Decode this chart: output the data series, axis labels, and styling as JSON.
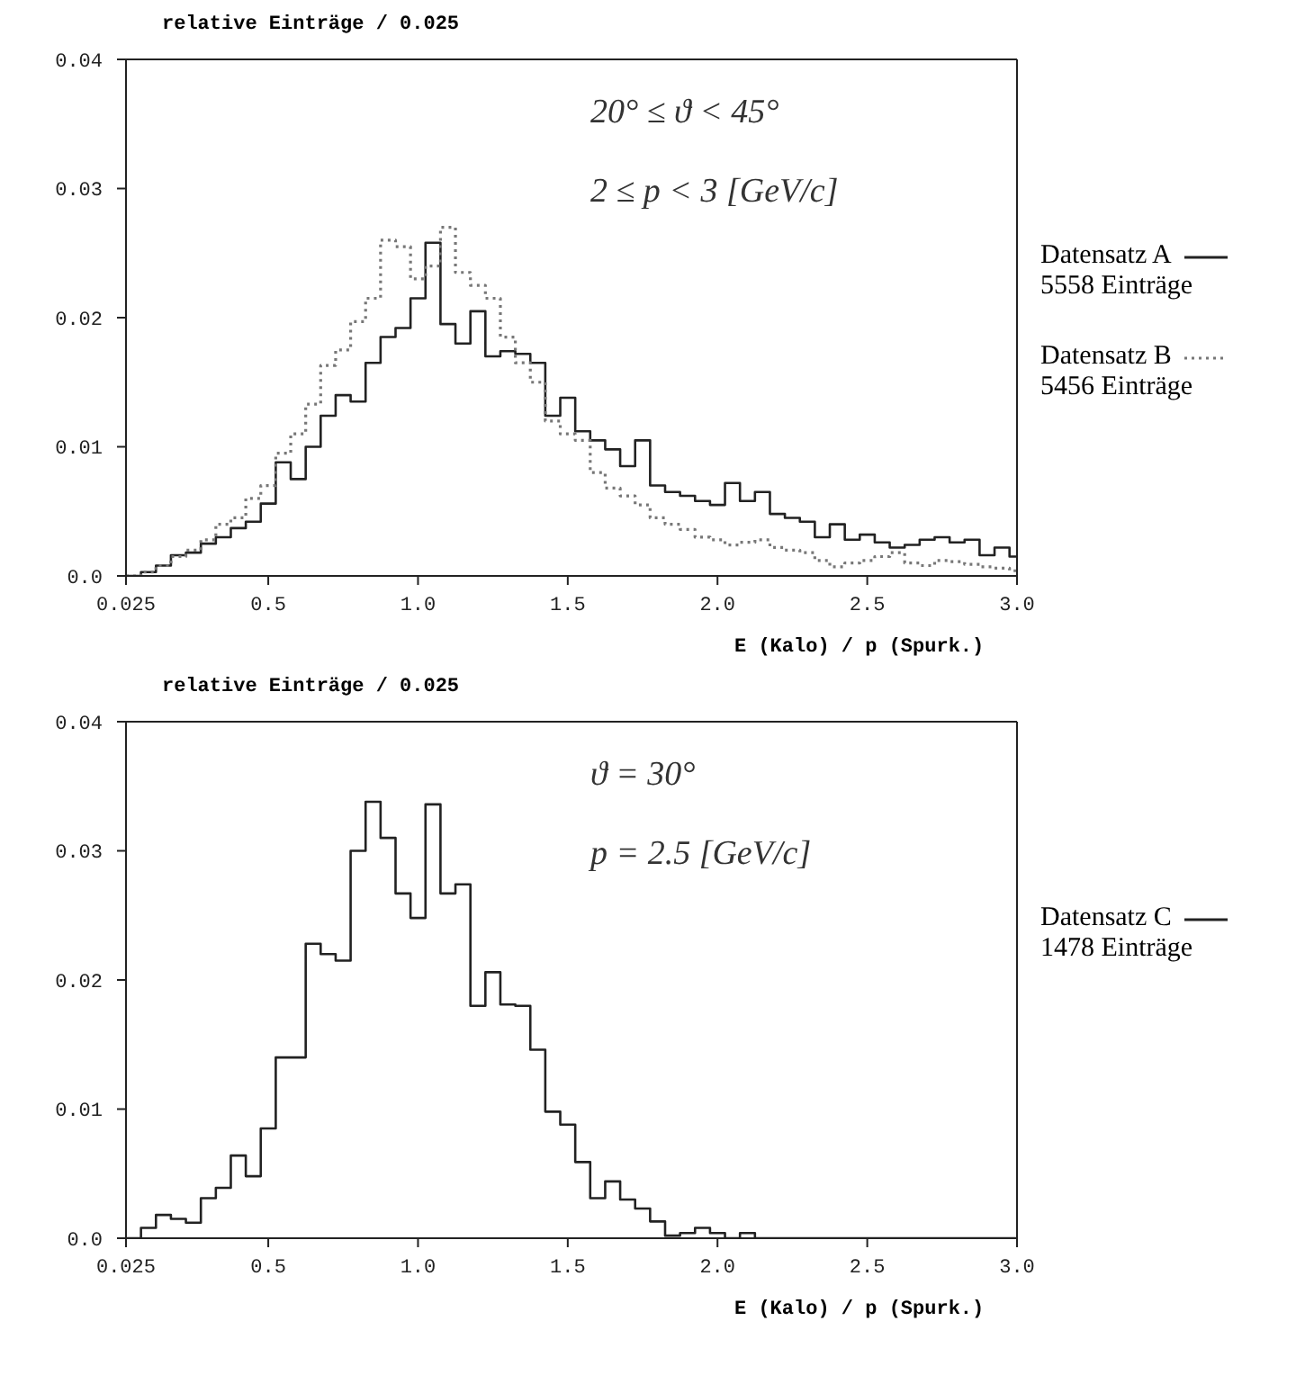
{
  "chart_data": [
    {
      "type": "histogram",
      "ylabel": "relative Einträge / 0.025",
      "xlabel": "E (Kalo) / p (Spurk.)",
      "bins": [
        0.025,
        0.075,
        0.125,
        0.175,
        0.225,
        0.275,
        0.325,
        0.375,
        0.425,
        0.475,
        0.525,
        0.575,
        0.625,
        0.675,
        0.725,
        0.775,
        0.825,
        0.875,
        0.925,
        0.975,
        1.025,
        1.075,
        1.125,
        1.175,
        1.225,
        1.275,
        1.325,
        1.375,
        1.425,
        1.475,
        1.525,
        1.575,
        1.625,
        1.675,
        1.725,
        1.775,
        1.825,
        1.875,
        1.925,
        1.975,
        2.025,
        2.075,
        2.125,
        2.175,
        2.225,
        2.275,
        2.325,
        2.375,
        2.425,
        2.475,
        2.525,
        2.575,
        2.625,
        2.675,
        2.725,
        2.775,
        2.825,
        2.875,
        2.925,
        2.975,
        3.0
      ],
      "series": [
        {
          "name": "Datensatz A",
          "color": "#222222",
          "line_style": "solid",
          "values": [
            0,
            0.0003,
            0.0008,
            0.0016,
            0.0018,
            0.0025,
            0.003,
            0.0037,
            0.0042,
            0.0056,
            0.0088,
            0.0075,
            0.01,
            0.0124,
            0.014,
            0.0135,
            0.0165,
            0.0185,
            0.0192,
            0.0215,
            0.0258,
            0.0195,
            0.018,
            0.0205,
            0.017,
            0.0174,
            0.0172,
            0.0165,
            0.0124,
            0.0138,
            0.0112,
            0.0105,
            0.0098,
            0.0085,
            0.0105,
            0.007,
            0.0065,
            0.0062,
            0.0058,
            0.0055,
            0.0072,
            0.0058,
            0.0065,
            0.0048,
            0.0045,
            0.0042,
            0.003,
            0.004,
            0.0028,
            0.0032,
            0.0026,
            0.0022,
            0.0024,
            0.0028,
            0.003,
            0.0026,
            0.0028,
            0.0016,
            0.0022,
            0.0015
          ]
        },
        {
          "name": "Datensatz B",
          "color": "#777777",
          "line_style": "dotted",
          "values": [
            0,
            0.0003,
            0.0008,
            0.0015,
            0.002,
            0.0028,
            0.004,
            0.0045,
            0.006,
            0.007,
            0.0095,
            0.011,
            0.0133,
            0.0163,
            0.0175,
            0.0197,
            0.0215,
            0.026,
            0.0255,
            0.023,
            0.024,
            0.027,
            0.0235,
            0.0225,
            0.0215,
            0.0185,
            0.0165,
            0.015,
            0.012,
            0.011,
            0.0105,
            0.008,
            0.0068,
            0.0062,
            0.0055,
            0.0045,
            0.004,
            0.0036,
            0.003,
            0.0028,
            0.0024,
            0.0026,
            0.0028,
            0.0022,
            0.002,
            0.0018,
            0.0012,
            0.0007,
            0.001,
            0.0012,
            0.0015,
            0.0018,
            0.001,
            0.0008,
            0.0012,
            0.0011,
            0.0009,
            0.0007,
            0.0006,
            0.0004
          ]
        }
      ],
      "xlim": [
        0.025,
        3.0
      ],
      "xticks": [
        {
          "value": 0.025,
          "label": "0.025"
        },
        0.5,
        {
          "value": 1,
          "label": "1.0"
        },
        1.5,
        {
          "value": 2,
          "label": "2.0"
        },
        2.5,
        {
          "value": 3,
          "label": "3.0"
        }
      ],
      "ylim": [
        0,
        0.04
      ],
      "yticks": [
        {
          "value": 0,
          "label": "0.0"
        },
        0.01,
        0.02,
        0.03,
        0.04
      ],
      "legend": "right",
      "grid": false,
      "annotations": [
        "5558 Einträge",
        "5456 Einträge",
        "20° ≤ ϑ < 45°",
        "2 ≤ p < 3 [GeV/c]"
      ]
    },
    {
      "type": "histogram",
      "ylabel": "relative Einträge / 0.025",
      "xlabel": "E (Kalo) / p (Spurk.)",
      "bins": [
        0.025,
        0.075,
        0.125,
        0.175,
        0.225,
        0.275,
        0.325,
        0.375,
        0.425,
        0.475,
        0.525,
        0.575,
        0.625,
        0.675,
        0.725,
        0.775,
        0.825,
        0.875,
        0.925,
        0.975,
        1.025,
        1.075,
        1.125,
        1.175,
        1.225,
        1.275,
        1.325,
        1.375,
        1.425,
        1.475,
        1.525,
        1.575,
        1.625,
        1.675,
        1.725,
        1.775,
        1.825,
        1.875,
        1.925,
        1.975,
        2.025,
        2.075,
        2.125,
        2.175,
        2.225,
        2.275,
        2.325,
        2.375,
        2.425,
        2.475,
        2.525,
        2.575,
        2.625,
        2.675,
        2.725,
        2.775,
        2.825,
        2.875,
        2.925,
        2.975,
        3.0
      ],
      "series": [
        {
          "name": "Datensatz C",
          "color": "#222222",
          "line_style": "solid",
          "values": [
            0,
            0.0008,
            0.0018,
            0.0015,
            0.0012,
            0.0031,
            0.0039,
            0.0064,
            0.0048,
            0.0085,
            0.014,
            0.014,
            0.0228,
            0.022,
            0.0215,
            0.03,
            0.0338,
            0.031,
            0.0267,
            0.0248,
            0.0336,
            0.0267,
            0.0274,
            0.018,
            0.0206,
            0.0181,
            0.018,
            0.0146,
            0.0098,
            0.0088,
            0.0059,
            0.0031,
            0.0044,
            0.003,
            0.0023,
            0.0013,
            0.0002,
            0.0004,
            0.0008,
            0.0004,
            0,
            0.0004,
            0,
            0,
            0,
            0,
            0,
            0,
            0,
            0,
            0,
            0,
            0,
            0,
            0,
            0,
            0,
            0,
            0,
            0
          ]
        }
      ],
      "xlim": [
        0.025,
        3.0
      ],
      "xticks": [
        {
          "value": 0.025,
          "label": "0.025"
        },
        0.5,
        {
          "value": 1,
          "label": "1.0"
        },
        1.5,
        {
          "value": 2,
          "label": "2.0"
        },
        2.5,
        {
          "value": 3,
          "label": "3.0"
        }
      ],
      "ylim": [
        0,
        0.04
      ],
      "yticks": [
        {
          "value": 0,
          "label": "0.0"
        },
        0.01,
        0.02,
        0.03,
        0.04
      ],
      "legend": "right",
      "grid": false,
      "annotations": [
        "1478 Einträge",
        "ϑ = 30°",
        "p = 2.5 [GeV/c]"
      ]
    }
  ]
}
